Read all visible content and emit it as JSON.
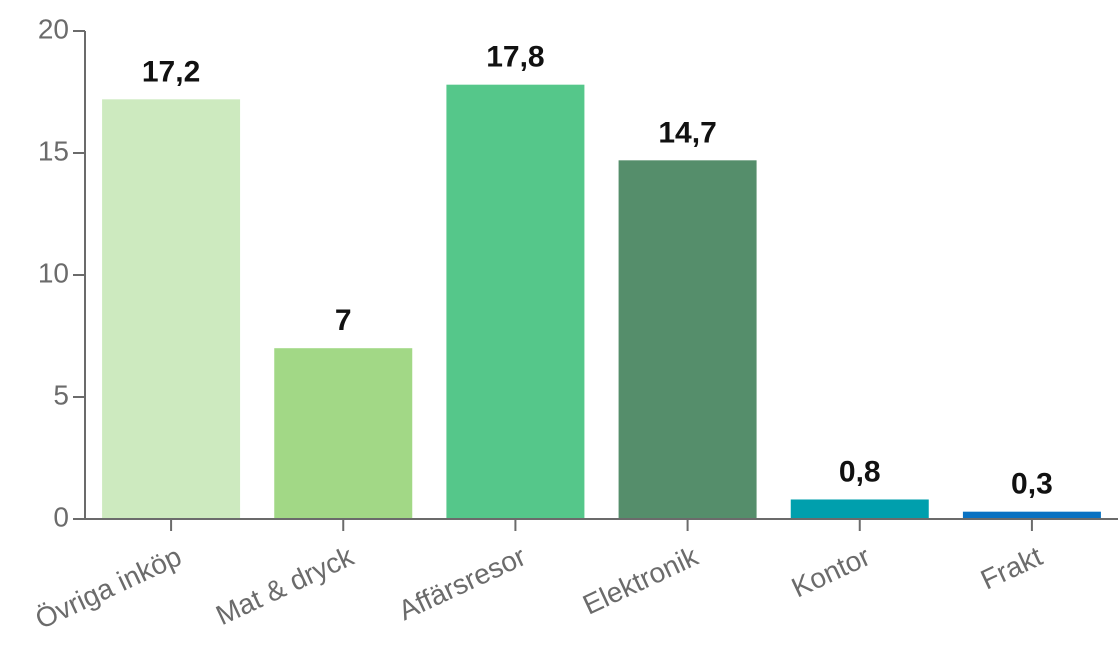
{
  "chart_data": {
    "type": "bar",
    "categories": [
      "Övriga inköp",
      "Mat & dryck",
      "Affärsresor",
      "Elektronik",
      "Kontor",
      "Frakt"
    ],
    "values": [
      17.2,
      7,
      17.8,
      14.7,
      0.8,
      0.3
    ],
    "value_labels": [
      "17,2",
      "7",
      "17,8",
      "14,7",
      "0,8",
      "0,3"
    ],
    "colors": [
      "#cdeabf",
      "#a2d886",
      "#55c78a",
      "#558e6b",
      "#009fad",
      "#0a72c2"
    ],
    "yticks": [
      0,
      5,
      10,
      15,
      20
    ],
    "ytick_labels": [
      "0",
      "5",
      "10",
      "15",
      "20"
    ],
    "ylim": [
      0,
      20
    ],
    "title": "",
    "xlabel": "",
    "ylabel": "",
    "grid": false,
    "legend": "none"
  }
}
